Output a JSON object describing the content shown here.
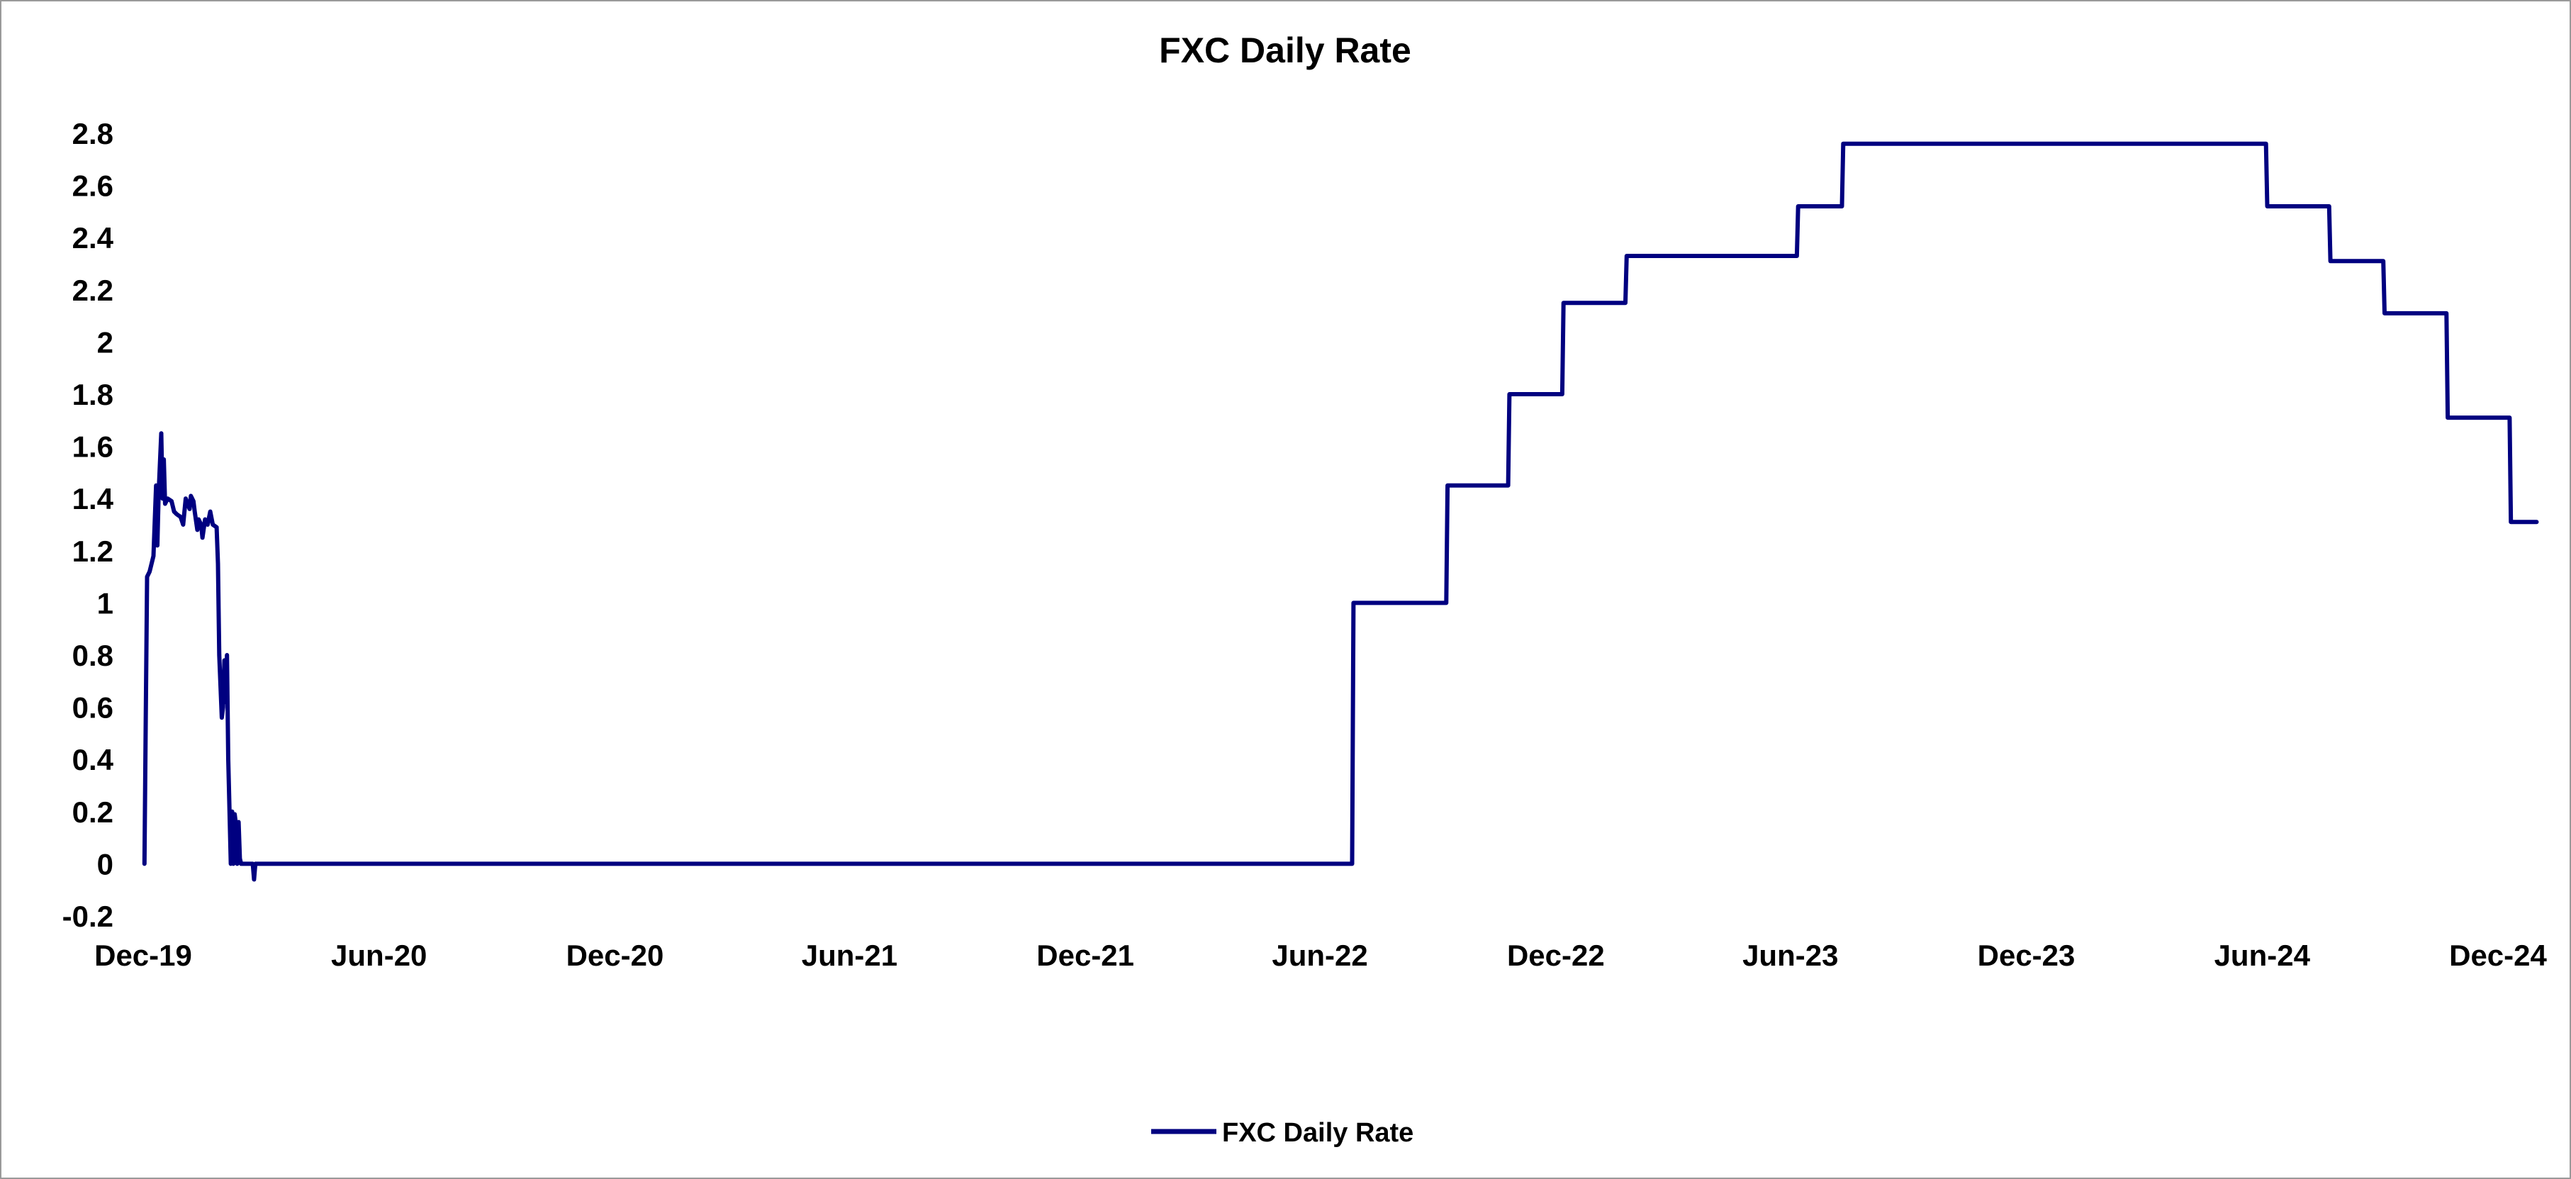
{
  "chart_data": {
    "type": "line",
    "title": "FXC Daily Rate",
    "xlabel": "",
    "ylabel": "",
    "x_axis_type": "date",
    "x_tick_labels": [
      "Dec-19",
      "Jun-20",
      "Dec-20",
      "Jun-21",
      "Dec-21",
      "Jun-22",
      "Dec-22",
      "Jun-23",
      "Dec-23",
      "Jun-24",
      "Dec-24"
    ],
    "x_tick_dates": [
      "2019-12-01",
      "2020-06-01",
      "2020-12-01",
      "2021-06-01",
      "2021-12-01",
      "2022-06-01",
      "2022-12-01",
      "2023-06-01",
      "2023-12-01",
      "2024-06-01",
      "2024-12-01"
    ],
    "y_ticks": [
      -0.2,
      0,
      0.2,
      0.4,
      0.6,
      0.8,
      1,
      1.2,
      1.4,
      1.6,
      1.8,
      2,
      2.2,
      2.4,
      2.6,
      2.8
    ],
    "xlim": [
      "2019-12-01",
      "2024-12-01"
    ],
    "ylim": [
      -0.2,
      2.8
    ],
    "grid": false,
    "legend_position": "bottom-center",
    "series": [
      {
        "name": "FXC Daily Rate",
        "color": "#000080",
        "points": [
          [
            "2019-12-02",
            0.0
          ],
          [
            "2019-12-03",
            0.55
          ],
          [
            "2019-12-04",
            1.1
          ],
          [
            "2019-12-06",
            1.12
          ],
          [
            "2019-12-09",
            1.18
          ],
          [
            "2019-12-11",
            1.45
          ],
          [
            "2019-12-12",
            1.22
          ],
          [
            "2019-12-13",
            1.42
          ],
          [
            "2019-12-15",
            1.65
          ],
          [
            "2019-12-16",
            1.4
          ],
          [
            "2019-12-17",
            1.55
          ],
          [
            "2019-12-18",
            1.38
          ],
          [
            "2019-12-20",
            1.4
          ],
          [
            "2019-12-23",
            1.39
          ],
          [
            "2019-12-25",
            1.35
          ],
          [
            "2019-12-27",
            1.34
          ],
          [
            "2019-12-30",
            1.33
          ],
          [
            "2020-01-01",
            1.3
          ],
          [
            "2020-01-02",
            1.35
          ],
          [
            "2020-01-03",
            1.4
          ],
          [
            "2020-01-06",
            1.36
          ],
          [
            "2020-01-07",
            1.41
          ],
          [
            "2020-01-09",
            1.39
          ],
          [
            "2020-01-10",
            1.35
          ],
          [
            "2020-01-12",
            1.28
          ],
          [
            "2020-01-13",
            1.32
          ],
          [
            "2020-01-15",
            1.3
          ],
          [
            "2020-01-16",
            1.25
          ],
          [
            "2020-01-18",
            1.32
          ],
          [
            "2020-01-20",
            1.3
          ],
          [
            "2020-01-22",
            1.35
          ],
          [
            "2020-01-24",
            1.3
          ],
          [
            "2020-01-27",
            1.29
          ],
          [
            "2020-01-28",
            1.15
          ],
          [
            "2020-01-29",
            0.8
          ],
          [
            "2020-01-31",
            0.56
          ],
          [
            "2020-02-01",
            0.6
          ],
          [
            "2020-02-02",
            0.78
          ],
          [
            "2020-02-03",
            0.62
          ],
          [
            "2020-02-04",
            0.8
          ],
          [
            "2020-02-05",
            0.4
          ],
          [
            "2020-02-07",
            0.0
          ],
          [
            "2020-02-08",
            0.2
          ],
          [
            "2020-02-09",
            0.0
          ],
          [
            "2020-02-10",
            0.19
          ],
          [
            "2020-02-11",
            0.15
          ],
          [
            "2020-02-12",
            0.0
          ],
          [
            "2020-02-13",
            0.16
          ],
          [
            "2020-02-14",
            0.02
          ],
          [
            "2020-02-15",
            0.0
          ],
          [
            "2020-02-24",
            0.0
          ],
          [
            "2020-02-25",
            -0.06
          ],
          [
            "2020-02-26",
            0.0
          ],
          [
            "2022-06-26",
            0.0
          ],
          [
            "2022-06-27",
            1.0
          ],
          [
            "2022-09-07",
            1.0
          ],
          [
            "2022-09-08",
            1.45
          ],
          [
            "2022-10-25",
            1.45
          ],
          [
            "2022-10-26",
            1.8
          ],
          [
            "2022-12-06",
            1.8
          ],
          [
            "2022-12-07",
            2.15
          ],
          [
            "2023-01-24",
            2.15
          ],
          [
            "2023-01-25",
            2.33
          ],
          [
            "2023-06-06",
            2.33
          ],
          [
            "2023-06-07",
            2.52
          ],
          [
            "2023-07-11",
            2.52
          ],
          [
            "2023-07-12",
            2.76
          ],
          [
            "2024-06-04",
            2.76
          ],
          [
            "2024-06-05",
            2.52
          ],
          [
            "2024-07-23",
            2.52
          ],
          [
            "2024-07-24",
            2.31
          ],
          [
            "2024-09-03",
            2.31
          ],
          [
            "2024-09-04",
            2.11
          ],
          [
            "2024-10-22",
            2.11
          ],
          [
            "2024-10-23",
            1.71
          ],
          [
            "2024-12-10",
            1.71
          ],
          [
            "2024-12-11",
            1.31
          ],
          [
            "2024-12-31",
            1.31
          ]
        ]
      }
    ]
  }
}
